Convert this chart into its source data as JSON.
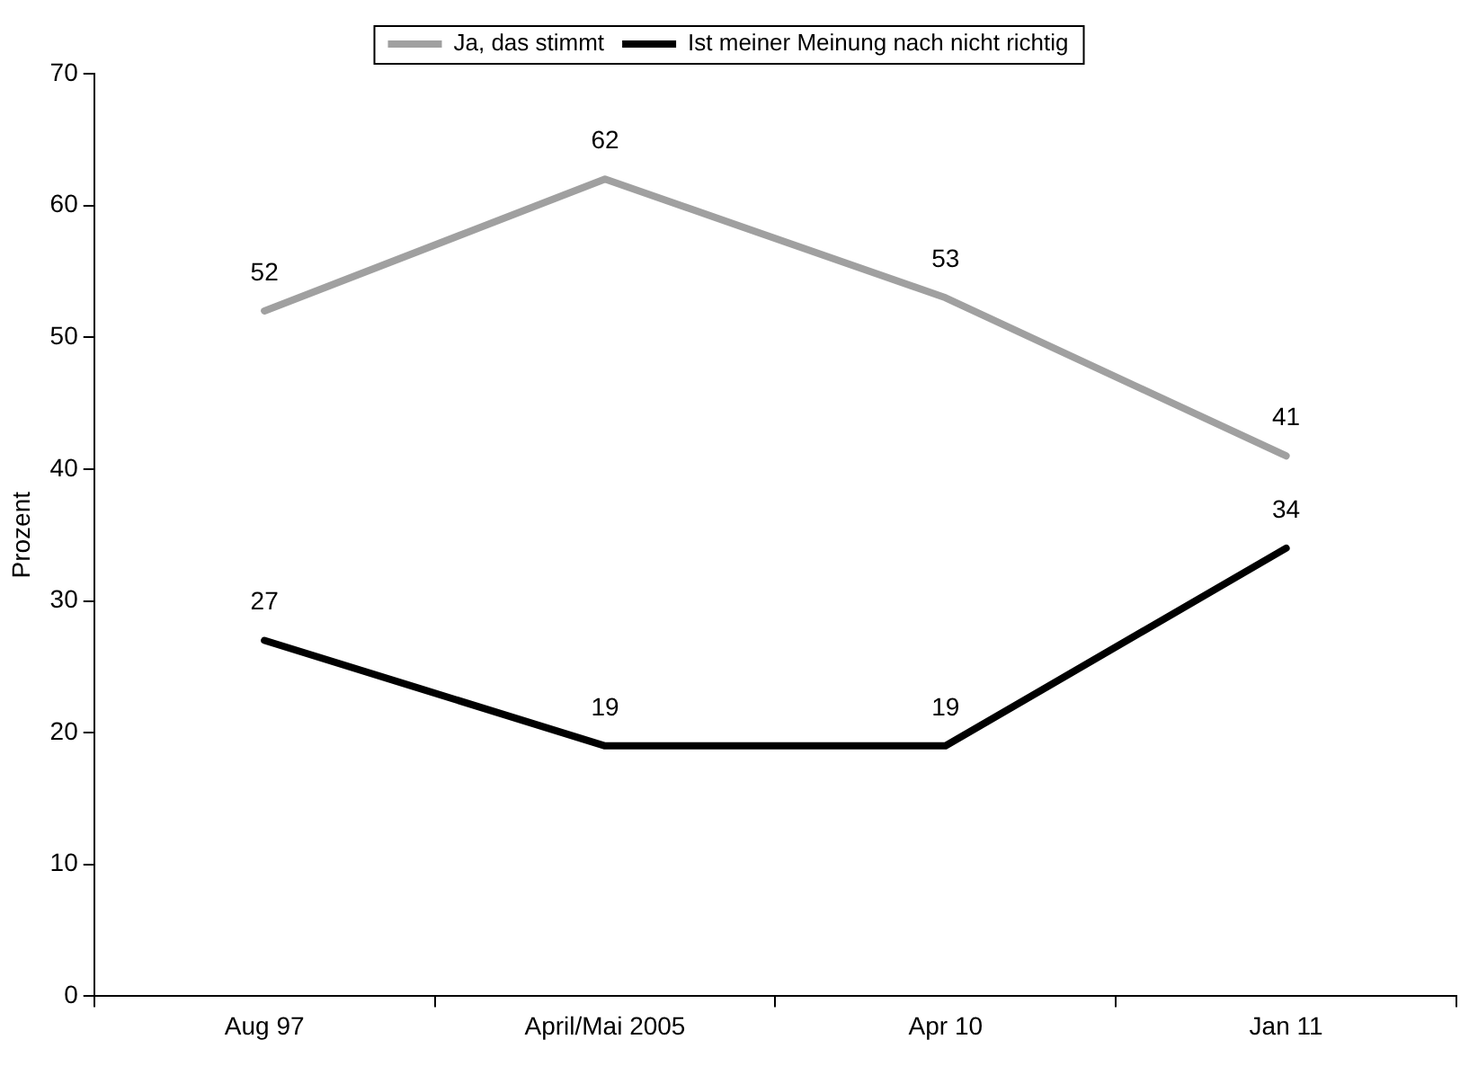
{
  "chart_data": {
    "type": "line",
    "ylabel": "Prozent",
    "categories": [
      "Aug 97",
      "April/Mai 2005",
      "Apr 10",
      "Jan 11"
    ],
    "series": [
      {
        "name": "Ja, das stimmt",
        "color": "#a0a0a0",
        "values": [
          52,
          62,
          53,
          41
        ]
      },
      {
        "name": "Ist meiner Meinung nach nicht richtig",
        "color": "#000000",
        "values": [
          27,
          19,
          19,
          34
        ]
      }
    ],
    "ylim": [
      0,
      70
    ],
    "yticks": [
      0,
      10,
      20,
      30,
      40,
      50,
      60,
      70
    ],
    "grid": false,
    "legend": "top",
    "marker": "none",
    "line_style": "solid",
    "data_labels": true
  }
}
